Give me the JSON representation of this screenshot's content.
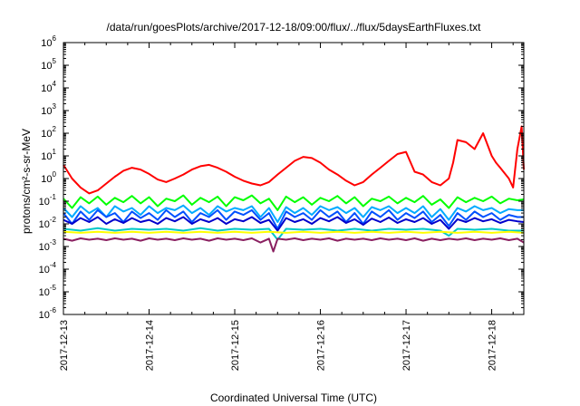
{
  "chart_data": {
    "type": "line",
    "title": "/data/run/goesPlots/archive/2017-12-18/09:00/flux/../flux/5daysEarthFluxes.txt",
    "xlabel": "Coordinated Universal Time (UTC)",
    "ylabel": "protons/cm²-s-sr-MeV",
    "yscale": "log",
    "ylim": [
      1e-06,
      1000000.0
    ],
    "xlim": [
      "2017-12-13",
      "2017-12-18 09:00"
    ],
    "grid": false,
    "legend": "none",
    "y_ticks": [
      {
        "value": 1e-06,
        "base": "10",
        "exp": "-6"
      },
      {
        "value": 1e-05,
        "base": "10",
        "exp": "-5"
      },
      {
        "value": 0.0001,
        "base": "10",
        "exp": "-4"
      },
      {
        "value": 0.001,
        "base": "10",
        "exp": "-3"
      },
      {
        "value": 0.01,
        "base": "10",
        "exp": "-2"
      },
      {
        "value": 0.1,
        "base": "10",
        "exp": "-1"
      },
      {
        "value": 1,
        "base": "10",
        "exp": "0"
      },
      {
        "value": 10.0,
        "base": "10",
        "exp": "1"
      },
      {
        "value": 100.0,
        "base": "10",
        "exp": "2"
      },
      {
        "value": 1000.0,
        "base": "10",
        "exp": "3"
      },
      {
        "value": 10000.0,
        "base": "10",
        "exp": "4"
      },
      {
        "value": 100000.0,
        "base": "10",
        "exp": "5"
      },
      {
        "value": 1000000.0,
        "base": "10",
        "exp": "6"
      }
    ],
    "x_ticks": [
      {
        "day": 0,
        "label": "2017-12-13"
      },
      {
        "day": 1,
        "label": "2017-12-14"
      },
      {
        "day": 2,
        "label": "2017-12-15"
      },
      {
        "day": 3,
        "label": "2017-12-16"
      },
      {
        "day": 4,
        "label": "2017-12-17"
      },
      {
        "day": 5,
        "label": "2017-12-18"
      }
    ],
    "series": [
      {
        "color": "#ff0000",
        "x": [
          0,
          0.1,
          0.2,
          0.3,
          0.4,
          0.5,
          0.6,
          0.7,
          0.8,
          0.9,
          1.0,
          1.1,
          1.2,
          1.3,
          1.4,
          1.5,
          1.6,
          1.7,
          1.8,
          1.9,
          2.0,
          2.1,
          2.2,
          2.3,
          2.4,
          2.5,
          2.6,
          2.7,
          2.8,
          2.9,
          3.0,
          3.1,
          3.2,
          3.3,
          3.4,
          3.5,
          3.6,
          3.7,
          3.8,
          3.9,
          4.0,
          4.1,
          4.2,
          4.3,
          4.4,
          4.5,
          4.55,
          4.6,
          4.7,
          4.8,
          4.9,
          5.0,
          5.05,
          5.1,
          5.2,
          5.25,
          5.3,
          5.35,
          5.375
        ],
        "y": [
          4.0,
          1.0,
          0.4,
          0.22,
          0.3,
          0.6,
          1.2,
          2.2,
          3.0,
          2.5,
          1.6,
          0.9,
          0.7,
          1.0,
          1.5,
          2.5,
          3.5,
          4.0,
          3.0,
          2.0,
          1.2,
          0.8,
          0.6,
          0.5,
          0.7,
          1.5,
          3.0,
          6.0,
          9.0,
          8.0,
          5.0,
          2.5,
          1.5,
          0.8,
          0.5,
          0.7,
          1.5,
          3.0,
          6.0,
          12.0,
          15.0,
          2.0,
          1.5,
          0.7,
          0.5,
          1.0,
          5.0,
          50.0,
          40.0,
          20.0,
          100.0,
          10.0,
          5.0,
          3.0,
          1.0,
          0.4,
          20.0,
          200.0,
          2.5
        ]
      },
      {
        "color": "#00ff00",
        "x": [
          0,
          0.1,
          0.2,
          0.3,
          0.4,
          0.5,
          0.6,
          0.7,
          0.8,
          0.9,
          1.0,
          1.1,
          1.2,
          1.3,
          1.4,
          1.5,
          1.6,
          1.7,
          1.8,
          1.9,
          2.0,
          2.1,
          2.2,
          2.3,
          2.4,
          2.5,
          2.6,
          2.7,
          2.8,
          2.9,
          3.0,
          3.1,
          3.2,
          3.3,
          3.4,
          3.5,
          3.6,
          3.7,
          3.8,
          3.9,
          4.0,
          4.1,
          4.2,
          4.3,
          4.4,
          4.5,
          4.6,
          4.7,
          4.8,
          4.9,
          5.0,
          5.1,
          5.2,
          5.3,
          5.375
        ],
        "y": [
          0.13,
          0.05,
          0.15,
          0.08,
          0.16,
          0.07,
          0.14,
          0.09,
          0.17,
          0.08,
          0.15,
          0.06,
          0.13,
          0.1,
          0.18,
          0.07,
          0.14,
          0.09,
          0.16,
          0.06,
          0.15,
          0.11,
          0.18,
          0.08,
          0.13,
          0.04,
          0.16,
          0.09,
          0.15,
          0.07,
          0.14,
          0.1,
          0.17,
          0.08,
          0.15,
          0.06,
          0.13,
          0.1,
          0.16,
          0.08,
          0.14,
          0.09,
          0.17,
          0.07,
          0.12,
          0.05,
          0.15,
          0.09,
          0.14,
          0.1,
          0.16,
          0.08,
          0.13,
          0.11,
          0.12
        ]
      },
      {
        "color": "#00aaff",
        "x": [
          0,
          0.1,
          0.2,
          0.3,
          0.4,
          0.5,
          0.6,
          0.7,
          0.8,
          0.9,
          1.0,
          1.1,
          1.2,
          1.3,
          1.4,
          1.5,
          1.6,
          1.7,
          1.8,
          1.9,
          2.0,
          2.1,
          2.2,
          2.3,
          2.4,
          2.5,
          2.6,
          2.7,
          2.8,
          2.9,
          3.0,
          3.1,
          3.2,
          3.3,
          3.4,
          3.5,
          3.6,
          3.7,
          3.8,
          3.9,
          4.0,
          4.1,
          4.2,
          4.3,
          4.4,
          4.5,
          4.6,
          4.7,
          4.8,
          4.9,
          5.0,
          5.1,
          5.2,
          5.3,
          5.375
        ],
        "y": [
          0.05,
          0.02,
          0.06,
          0.03,
          0.05,
          0.02,
          0.06,
          0.035,
          0.05,
          0.025,
          0.06,
          0.03,
          0.05,
          0.04,
          0.065,
          0.03,
          0.05,
          0.025,
          0.06,
          0.035,
          0.05,
          0.04,
          0.06,
          0.02,
          0.05,
          0.012,
          0.055,
          0.03,
          0.05,
          0.025,
          0.06,
          0.04,
          0.055,
          0.03,
          0.05,
          0.02,
          0.055,
          0.04,
          0.06,
          0.03,
          0.05,
          0.03,
          0.06,
          0.02,
          0.045,
          0.015,
          0.05,
          0.035,
          0.06,
          0.04,
          0.05,
          0.03,
          0.045,
          0.04,
          0.04
        ]
      },
      {
        "color": "#0050ff",
        "x": [
          0,
          0.1,
          0.2,
          0.3,
          0.4,
          0.5,
          0.6,
          0.7,
          0.8,
          0.9,
          1.0,
          1.1,
          1.2,
          1.3,
          1.4,
          1.5,
          1.6,
          1.7,
          1.8,
          1.9,
          2.0,
          2.1,
          2.2,
          2.3,
          2.4,
          2.5,
          2.6,
          2.7,
          2.8,
          2.9,
          3.0,
          3.1,
          3.2,
          3.3,
          3.4,
          3.5,
          3.6,
          3.7,
          3.8,
          3.9,
          4.0,
          4.1,
          4.2,
          4.3,
          4.4,
          4.5,
          4.6,
          4.7,
          4.8,
          4.9,
          5.0,
          5.1,
          5.2,
          5.3,
          5.375
        ],
        "y": [
          0.03,
          0.01,
          0.035,
          0.015,
          0.04,
          0.02,
          0.03,
          0.012,
          0.035,
          0.018,
          0.03,
          0.015,
          0.04,
          0.02,
          0.035,
          0.012,
          0.03,
          0.02,
          0.04,
          0.015,
          0.035,
          0.025,
          0.04,
          0.015,
          0.03,
          0.006,
          0.035,
          0.02,
          0.03,
          0.015,
          0.04,
          0.02,
          0.035,
          0.012,
          0.03,
          0.01,
          0.035,
          0.02,
          0.04,
          0.015,
          0.03,
          0.018,
          0.035,
          0.012,
          0.025,
          0.008,
          0.03,
          0.015,
          0.035,
          0.02,
          0.03,
          0.015,
          0.025,
          0.02,
          0.02
        ]
      },
      {
        "color": "#0000cc",
        "x": [
          0,
          0.1,
          0.2,
          0.3,
          0.4,
          0.5,
          0.6,
          0.7,
          0.8,
          0.9,
          1.0,
          1.1,
          1.2,
          1.3,
          1.4,
          1.5,
          1.6,
          1.7,
          1.8,
          1.9,
          2.0,
          2.1,
          2.2,
          2.3,
          2.4,
          2.5,
          2.6,
          2.7,
          2.8,
          2.9,
          3.0,
          3.1,
          3.2,
          3.3,
          3.4,
          3.5,
          3.6,
          3.7,
          3.8,
          3.9,
          4.0,
          4.1,
          4.2,
          4.3,
          4.4,
          4.5,
          4.6,
          4.7,
          4.8,
          4.9,
          5.0,
          5.1,
          5.2,
          5.3,
          5.375
        ],
        "y": [
          0.015,
          0.01,
          0.018,
          0.012,
          0.02,
          0.01,
          0.016,
          0.011,
          0.018,
          0.012,
          0.015,
          0.01,
          0.018,
          0.013,
          0.02,
          0.01,
          0.016,
          0.012,
          0.018,
          0.01,
          0.016,
          0.013,
          0.02,
          0.011,
          0.015,
          0.005,
          0.018,
          0.012,
          0.016,
          0.01,
          0.018,
          0.013,
          0.02,
          0.011,
          0.016,
          0.009,
          0.017,
          0.012,
          0.019,
          0.011,
          0.016,
          0.012,
          0.018,
          0.01,
          0.015,
          0.006,
          0.016,
          0.012,
          0.018,
          0.013,
          0.016,
          0.011,
          0.015,
          0.013,
          0.012
        ]
      },
      {
        "color": "#00c8c8",
        "x": [
          0,
          0.2,
          0.4,
          0.6,
          0.8,
          1.0,
          1.2,
          1.4,
          1.6,
          1.8,
          2.0,
          2.2,
          2.4,
          2.5,
          2.6,
          2.8,
          3.0,
          3.2,
          3.4,
          3.6,
          3.8,
          4.0,
          4.2,
          4.4,
          4.5,
          4.6,
          4.8,
          5.0,
          5.2,
          5.375
        ],
        "y": [
          0.006,
          0.005,
          0.0065,
          0.005,
          0.006,
          0.0055,
          0.006,
          0.005,
          0.0065,
          0.005,
          0.006,
          0.0055,
          0.006,
          0.002,
          0.006,
          0.0055,
          0.006,
          0.005,
          0.006,
          0.005,
          0.006,
          0.0055,
          0.006,
          0.005,
          0.003,
          0.006,
          0.0055,
          0.006,
          0.005,
          0.005
        ]
      },
      {
        "color": "#ffff00",
        "x": [
          0,
          0.2,
          0.4,
          0.6,
          0.8,
          1.0,
          1.2,
          1.4,
          1.6,
          1.8,
          2.0,
          2.2,
          2.4,
          2.6,
          2.8,
          3.0,
          3.2,
          3.4,
          3.6,
          3.8,
          4.0,
          4.2,
          4.4,
          4.6,
          4.8,
          5.0,
          5.2,
          5.375
        ],
        "y": [
          0.0045,
          0.004,
          0.0045,
          0.004,
          0.0045,
          0.004,
          0.0045,
          0.004,
          0.0045,
          0.004,
          0.0045,
          0.004,
          0.0045,
          0.004,
          0.0045,
          0.004,
          0.0045,
          0.004,
          0.0045,
          0.004,
          0.0045,
          0.004,
          0.0045,
          0.004,
          0.0045,
          0.004,
          0.0045,
          0.004
        ]
      },
      {
        "color": "#8a2060",
        "x": [
          0,
          0.1,
          0.2,
          0.3,
          0.4,
          0.5,
          0.6,
          0.7,
          0.8,
          0.9,
          1.0,
          1.1,
          1.2,
          1.3,
          1.4,
          1.5,
          1.6,
          1.7,
          1.8,
          1.9,
          2.0,
          2.1,
          2.2,
          2.3,
          2.4,
          2.45,
          2.5,
          2.6,
          2.7,
          2.8,
          2.9,
          3.0,
          3.1,
          3.2,
          3.3,
          3.4,
          3.5,
          3.6,
          3.7,
          3.8,
          3.9,
          4.0,
          4.1,
          4.2,
          4.3,
          4.4,
          4.5,
          4.6,
          4.7,
          4.8,
          4.9,
          5.0,
          5.1,
          5.2,
          5.3,
          5.375
        ],
        "y": [
          0.0022,
          0.0018,
          0.0023,
          0.002,
          0.0022,
          0.0019,
          0.0023,
          0.002,
          0.0022,
          0.0018,
          0.0023,
          0.002,
          0.0022,
          0.0019,
          0.0023,
          0.002,
          0.0022,
          0.0018,
          0.0023,
          0.002,
          0.0022,
          0.0019,
          0.0023,
          0.0015,
          0.0022,
          0.0006,
          0.0022,
          0.002,
          0.0023,
          0.0019,
          0.0022,
          0.002,
          0.0023,
          0.0018,
          0.0022,
          0.002,
          0.0022,
          0.0019,
          0.0023,
          0.002,
          0.0022,
          0.0019,
          0.0023,
          0.0018,
          0.0022,
          0.0019,
          0.0022,
          0.002,
          0.0023,
          0.0019,
          0.0022,
          0.002,
          0.0023,
          0.0019,
          0.0022,
          0.0015
        ]
      }
    ]
  }
}
